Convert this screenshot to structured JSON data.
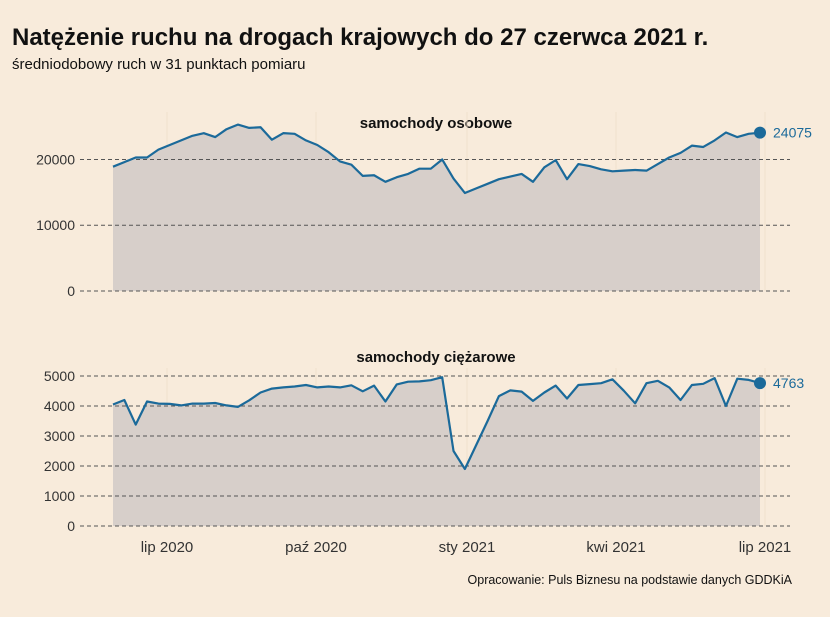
{
  "title": "Natężenie ruchu na drogach krajowych do 27 czerwca 2021 r.",
  "subtitle": "średniodobowy ruch w 31 punktach pomiaru",
  "source": "Opracowanie: Puls Biznesu na podstawie danych GDDKiA",
  "colors": {
    "background": "#f8ebdb",
    "line": "#1b6a9a",
    "area": "#d7cfca",
    "grid": "#555555",
    "text": "#333333"
  },
  "chart_data": {
    "type": "area",
    "x_tick_labels": [
      "lip 2020",
      "paź 2020",
      "sty 2021",
      "kwi 2021",
      "lip 2021"
    ],
    "panels": [
      {
        "title": "samochody osobowe",
        "y_ticks": [
          0,
          10000,
          20000
        ],
        "ylim": [
          0,
          26000
        ],
        "end_label": "24075",
        "values": [
          18900,
          19600,
          20300,
          20300,
          21500,
          22200,
          22900,
          23600,
          24000,
          23400,
          24600,
          25300,
          24800,
          24900,
          23000,
          24000,
          23900,
          22900,
          22200,
          21100,
          19700,
          19200,
          17500,
          17600,
          16600,
          17300,
          17800,
          18600,
          18600,
          20000,
          17100,
          14900,
          15600,
          16300,
          17000,
          17400,
          17800,
          16600,
          18800,
          19900,
          17000,
          19300,
          19000,
          18500,
          18200,
          18300,
          18400,
          18300,
          19300,
          20300,
          21000,
          22100,
          21900,
          22900,
          24100,
          23400,
          23900,
          24075
        ]
      },
      {
        "title": "samochody ciężarowe",
        "y_ticks": [
          0,
          1000,
          2000,
          3000,
          4000,
          5000
        ],
        "ylim": [
          0,
          5000
        ],
        "end_label": "4763",
        "values": [
          4050,
          4200,
          3380,
          4150,
          4080,
          4070,
          4020,
          4080,
          4080,
          4100,
          4020,
          3970,
          4190,
          4450,
          4580,
          4620,
          4650,
          4700,
          4620,
          4650,
          4620,
          4690,
          4490,
          4680,
          4150,
          4720,
          4810,
          4820,
          4860,
          4960,
          2500,
          1900,
          2700,
          3500,
          4330,
          4520,
          4480,
          4170,
          4450,
          4680,
          4250,
          4700,
          4730,
          4760,
          4890,
          4510,
          4090,
          4760,
          4840,
          4620,
          4200,
          4700,
          4740,
          4930,
          4000,
          4910,
          4870,
          4763
        ]
      }
    ]
  }
}
